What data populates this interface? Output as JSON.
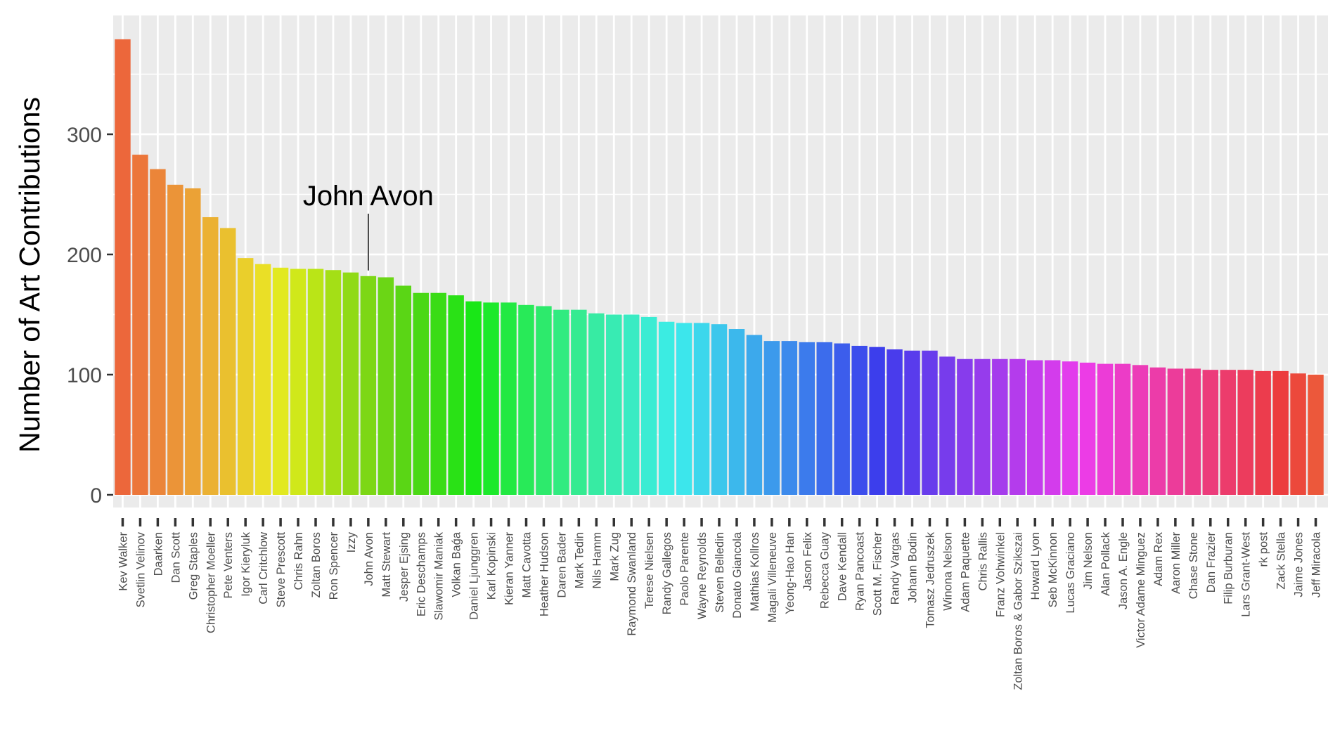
{
  "chart_data": {
    "type": "bar",
    "title": "",
    "xlabel": "",
    "ylabel": "Number of Art Contributions",
    "ylim": [
      0,
      390
    ],
    "yticks": [
      0,
      100,
      200,
      300
    ],
    "grid": true,
    "legend": "none",
    "background_color": "#EBEBEB",
    "grid_color": "#FFFFFF",
    "annotation": {
      "text": "John Avon",
      "category": "John Avon"
    },
    "categories": [
      "Kev Walker",
      "Svetlin Velinov",
      "Daarken",
      "Dan Scott",
      "Greg Staples",
      "Christopher Moeller",
      "Pete Venters",
      "Igor Kieryluk",
      "Carl Critchlow",
      "Steve Prescott",
      "Chris Rahn",
      "Zoltan Boros",
      "Ron Spencer",
      "Izzy",
      "John Avon",
      "Matt Stewart",
      "Jesper Ejsing",
      "Eric Deschamps",
      "Slawomir Maniak",
      "Volkan Baǵa",
      "Daniel Ljunggren",
      "Karl Kopinski",
      "Kieran Yanner",
      "Matt Cavotta",
      "Heather Hudson",
      "Daren Bader",
      "Mark Tedin",
      "Nils Hamm",
      "Mark Zug",
      "Raymond Swanland",
      "Terese Nielsen",
      "Randy Gallegos",
      "Paolo Parente",
      "Wayne Reynolds",
      "Steven Belledin",
      "Donato Giancola",
      "Mathias Kollros",
      "Magali Villeneuve",
      "Yeong-Hao Han",
      "Jason Felix",
      "Rebecca Guay",
      "Dave Kendall",
      "Ryan Pancoast",
      "Scott M. Fischer",
      "Randy Vargas",
      "Johann Bodin",
      "Tomasz Jedruszek",
      "Winona Nelson",
      "Adam Paquette",
      "Chris Rallis",
      "Franz Vohwinkel",
      "Zoltan Boros & Gabor Szikszai",
      "Howard Lyon",
      "Seb McKinnon",
      "Lucas Graciano",
      "Jim Nelson",
      "Alan Pollack",
      "Jason A. Engle",
      "Victor Adame Minguez",
      "Adam Rex",
      "Aaron Miller",
      "Chase Stone",
      "Dan Frazier",
      "Filip Burburan",
      "Lars Grant-West",
      "rk post",
      "Zack Stella",
      "Jaime Jones",
      "Jeff Miracola"
    ],
    "values": [
      379,
      283,
      271,
      258,
      255,
      231,
      222,
      197,
      192,
      189,
      188,
      188,
      187,
      185,
      182,
      181,
      174,
      168,
      168,
      166,
      161,
      160,
      160,
      158,
      157,
      154,
      154,
      151,
      150,
      150,
      148,
      144,
      143,
      143,
      142,
      138,
      133,
      128,
      128,
      127,
      127,
      126,
      124,
      123,
      121,
      120,
      120,
      115,
      113,
      113,
      113,
      113,
      112,
      112,
      111,
      110,
      109,
      109,
      108,
      106,
      105,
      105,
      104,
      104,
      104,
      103,
      103,
      101,
      100
    ]
  }
}
